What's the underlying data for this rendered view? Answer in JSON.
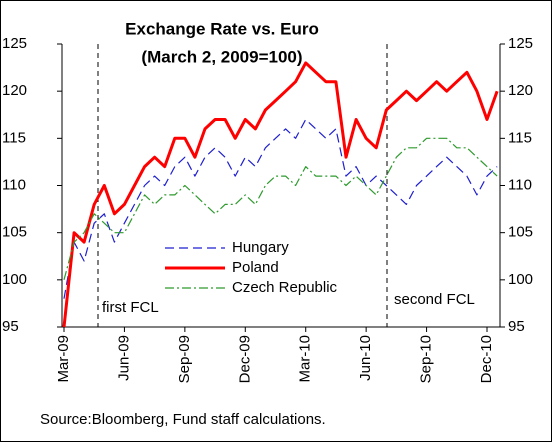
{
  "chart_data": {
    "type": "line",
    "title": "Exchange Rate vs. Euro",
    "subtitle": "(March 2, 2009=100)",
    "source": "Source:Bloomberg, Fund staff calculations.",
    "annotations": [
      "first FCL",
      "second FCL"
    ],
    "categories": [
      "Mar-09",
      null,
      null,
      null,
      null,
      null,
      "Jun-09",
      null,
      null,
      null,
      null,
      null,
      "Sep-09",
      null,
      null,
      null,
      null,
      null,
      "Dec-09",
      null,
      null,
      null,
      null,
      null,
      "Mar-10",
      null,
      null,
      null,
      null,
      null,
      "Jun-10",
      null,
      null,
      null,
      null,
      null,
      "Sep-10",
      null,
      null,
      null,
      null,
      null,
      "Dec-10",
      null
    ],
    "series": [
      {
        "name": "Hungary",
        "color": "#1f1fd0",
        "style": "dashed",
        "line_width": 1.2,
        "values": [
          98,
          104,
          102,
          106,
          107,
          104,
          106,
          108,
          110,
          111,
          110,
          112,
          113,
          111,
          113,
          114,
          113,
          111,
          113,
          112,
          114,
          115,
          116,
          115,
          117,
          116,
          115,
          116,
          111,
          112,
          110,
          111,
          110,
          109,
          108,
          110,
          111,
          112,
          113,
          112,
          111,
          109,
          111,
          112
        ]
      },
      {
        "name": "Poland",
        "color": "#ff0000",
        "style": "solid",
        "line_width": 3,
        "values": [
          95,
          105,
          104,
          108,
          110,
          107,
          108,
          110,
          112,
          113,
          112,
          115,
          115,
          113,
          116,
          117,
          117,
          115,
          117,
          116,
          118,
          119,
          120,
          121,
          123,
          122,
          121,
          121,
          113,
          117,
          115,
          114,
          118,
          119,
          120,
          119,
          120,
          121,
          120,
          121,
          122,
          120,
          117,
          120
        ]
      },
      {
        "name": "Czech Republic",
        "color": "#2e9a2e",
        "style": "dashdot",
        "line_width": 1.2,
        "values": [
          100,
          104,
          105,
          107,
          106,
          105,
          105,
          107,
          109,
          108,
          109,
          109,
          110,
          109,
          108,
          107,
          108,
          108,
          109,
          108,
          110,
          111,
          111,
          110,
          112,
          111,
          111,
          111,
          110,
          111,
          110,
          109,
          111,
          113,
          114,
          114,
          115,
          115,
          115,
          114,
          114,
          113,
          112,
          111
        ]
      }
    ],
    "ylim": [
      95,
      125
    ],
    "yticks": [
      95,
      100,
      105,
      110,
      115,
      120,
      125
    ],
    "y2lim": [
      95,
      125
    ],
    "y2ticks": [
      95,
      100,
      105,
      110,
      115,
      120,
      125
    ]
  }
}
